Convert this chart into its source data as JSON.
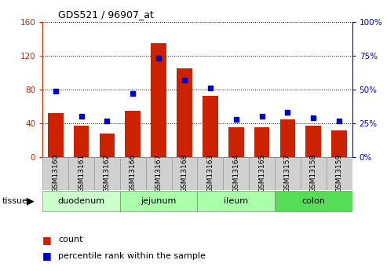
{
  "title": "GDS521 / 96907_at",
  "samples": [
    "GSM13160",
    "GSM13161",
    "GSM13162",
    "GSM13166",
    "GSM13167",
    "GSM13168",
    "GSM13163",
    "GSM13164",
    "GSM13165",
    "GSM13157",
    "GSM13158",
    "GSM13159"
  ],
  "counts": [
    52,
    37,
    28,
    55,
    135,
    105,
    72,
    35,
    35,
    45,
    37,
    32
  ],
  "percentiles": [
    49,
    30,
    27,
    47,
    73,
    57,
    51,
    28,
    30,
    33,
    29,
    27
  ],
  "bar_color": "#cc2200",
  "dot_color": "#0000cc",
  "ylim_left": [
    0,
    160
  ],
  "ylim_right": [
    0,
    100
  ],
  "yticks_left": [
    0,
    40,
    80,
    120,
    160
  ],
  "yticks_right": [
    0,
    25,
    50,
    75,
    100
  ],
  "tissue_groups": [
    {
      "label": "duodenum",
      "start": 0,
      "end": 2,
      "color": "#ccffcc"
    },
    {
      "label": "jejunum",
      "start": 3,
      "end": 5,
      "color": "#aaffaa"
    },
    {
      "label": "ileum",
      "start": 6,
      "end": 8,
      "color": "#aaffaa"
    },
    {
      "label": "colon",
      "start": 9,
      "end": 11,
      "color": "#55dd55"
    }
  ],
  "legend_count_label": "count",
  "legend_pct_label": "percentile rank within the sample",
  "xticklabel_bg": "#d0d0d0",
  "xticklabel_edge": "#999999"
}
